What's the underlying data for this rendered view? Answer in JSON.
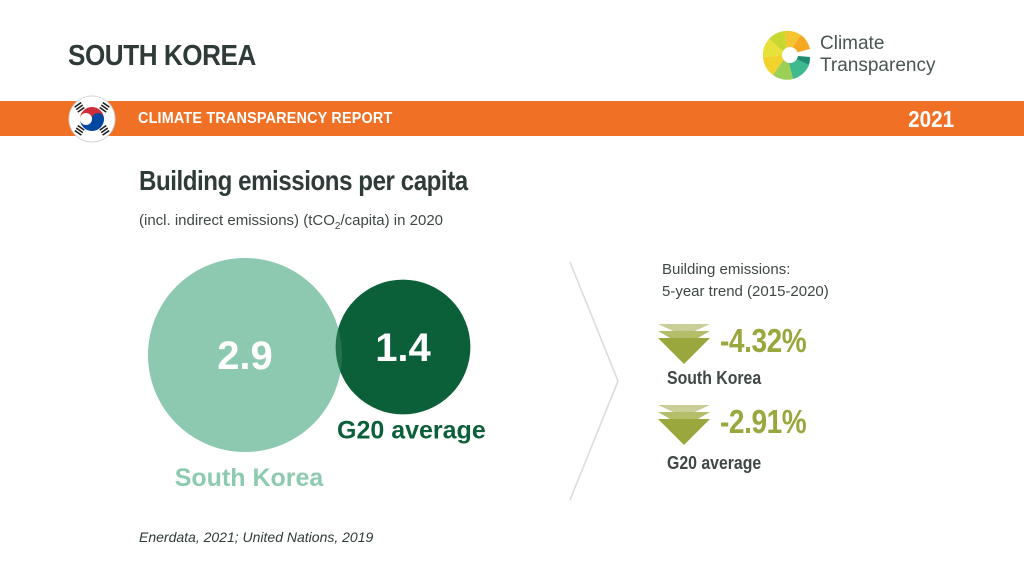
{
  "header": {
    "country": "SOUTH KOREA",
    "logo_line1": "Climate",
    "logo_line2": "Transparency",
    "logo_icon": "climate-transparency-logo-icon",
    "flag_icon": "south-korea-flag-icon"
  },
  "banner": {
    "title": "CLIMATE TRANSPARENCY REPORT",
    "year": "2021",
    "color": "#f07025"
  },
  "chart_data": {
    "type": "bubble",
    "title": "Building emissions per capita",
    "subtitle_pre": "(incl. indirect emissions) (tCO",
    "subtitle_sub": "2",
    "subtitle_post": "/capita) in 2020",
    "series": [
      {
        "name": "South Korea",
        "value": 2.9,
        "label": "2.9",
        "color": "#8dcab0",
        "label_color": "#8dcab0"
      },
      {
        "name": "G20 average",
        "value": 1.4,
        "label": "1.4",
        "color": "#0b6039",
        "label_color": "#0b6039"
      }
    ],
    "trend": {
      "title_line1": "Building emissions:",
      "title_line2": "5-year trend (2015-2020)",
      "icon": "trend-down-triangles-icon",
      "items": [
        {
          "name": "South Korea",
          "value": -4.32,
          "label": "-4.32%"
        },
        {
          "name": "G20 average",
          "value": -2.91,
          "label": "-2.91%"
        }
      ],
      "color": "#9aa73d"
    }
  },
  "source": "Enerdata, 2021; United Nations, 2019"
}
